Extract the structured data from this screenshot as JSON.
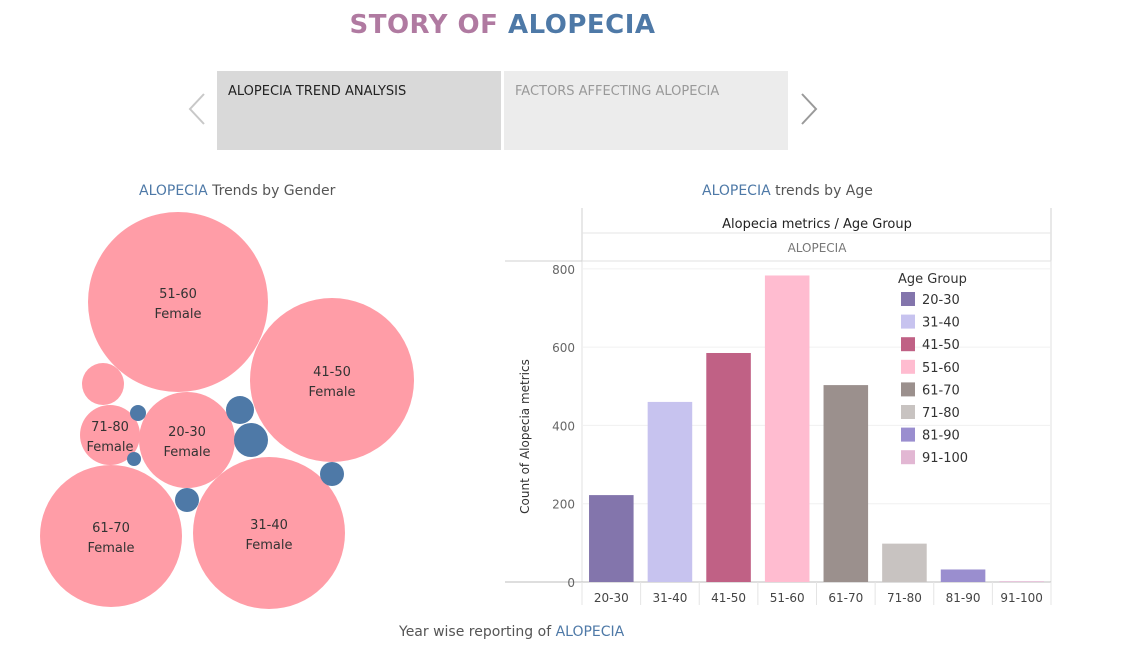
{
  "story": {
    "title_part1": "STORY OF ",
    "title_part2": "ALOPECIA",
    "tabs": [
      {
        "label": "ALOPECIA TREND ANALYSIS",
        "active": true
      },
      {
        "label": "FACTORS AFFECTING ALOPECIA",
        "active": false
      }
    ]
  },
  "gender_section": {
    "title_accent": "ALOPECIA",
    "title_rest": " Trends by Gender"
  },
  "age_section": {
    "title_accent": "ALOPECIA",
    "title_rest": " trends by Age"
  },
  "footer": {
    "title_rest": "Year wise reporting of ",
    "title_accent": "ALOPECIA"
  },
  "colors": {
    "female": "#ff9da7",
    "male": "#4e79a7",
    "accent": "#4e79a7",
    "title_pink": "#b07aa1"
  },
  "chart_data": [
    {
      "type": "bubble",
      "bubbles": [
        {
          "age_group": "51-60",
          "gender": "Female",
          "labeled": true
        },
        {
          "age_group": "41-50",
          "gender": "Female",
          "labeled": true
        },
        {
          "age_group": "20-30",
          "gender": "Female",
          "labeled": true
        },
        {
          "age_group": "71-80",
          "gender": "Female",
          "labeled": true
        },
        {
          "age_group": "61-70",
          "gender": "Female",
          "labeled": true
        },
        {
          "age_group": "31-40",
          "gender": "Female",
          "labeled": true
        },
        {
          "age_group": "",
          "gender": "Female",
          "labeled": false
        },
        {
          "age_group": "",
          "gender": "Male",
          "labeled": false
        },
        {
          "age_group": "",
          "gender": "Male",
          "labeled": false
        },
        {
          "age_group": "",
          "gender": "Male",
          "labeled": false
        },
        {
          "age_group": "",
          "gender": "Male",
          "labeled": false
        },
        {
          "age_group": "",
          "gender": "Male",
          "labeled": false
        },
        {
          "age_group": "",
          "gender": "Male",
          "labeled": false
        }
      ]
    },
    {
      "type": "bar",
      "title": "Alopecia metrics / Age Group",
      "subtitle": "ALOPECIA",
      "ylabel": "Count of Alopecia metrics",
      "xlabel": "",
      "ylim": [
        0,
        820
      ],
      "yticks": [
        0,
        200,
        400,
        600,
        800
      ],
      "grid": true,
      "categories": [
        "20-30",
        "31-40",
        "41-50",
        "51-60",
        "61-70",
        "71-80",
        "81-90",
        "91-100"
      ],
      "values": [
        222,
        460,
        585,
        783,
        503,
        98,
        32,
        2
      ],
      "colors": [
        "#8375ac",
        "#c7c3ef",
        "#c06185",
        "#ffbcd0",
        "#9b908d",
        "#c8c3c1",
        "#9a8ecf",
        "#e2b7d3"
      ],
      "legend": {
        "title": "Age Group",
        "position": "top-right",
        "items": [
          "20-30",
          "31-40",
          "41-50",
          "51-60",
          "61-70",
          "71-80",
          "81-90",
          "91-100"
        ]
      }
    }
  ]
}
